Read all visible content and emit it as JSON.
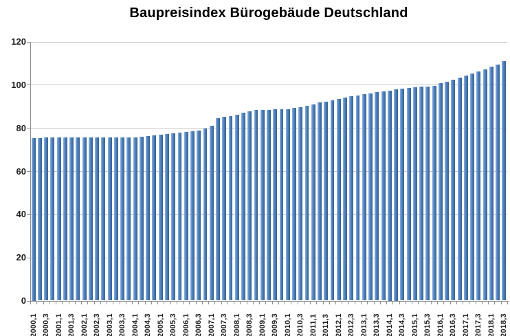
{
  "chart_data": {
    "type": "bar",
    "title": "Baupreisindex Bürogebäude Deutschland",
    "xlabel": "",
    "ylabel": "",
    "ylim": [
      0,
      120
    ],
    "yticks": [
      0,
      20,
      40,
      60,
      80,
      100,
      120
    ],
    "grid": true,
    "legend": false,
    "x_tick_labels": [
      "2000,1",
      "2000,3",
      "2001,1",
      "2001,3",
      "2002,1",
      "2002,3",
      "2003,1",
      "2003,3",
      "2004,1",
      "2004,3",
      "2005,1",
      "2005,3",
      "2006,1",
      "2006,3",
      "2007,1",
      "2007,3",
      "2008,1",
      "2008,3",
      "2009,1",
      "2009,3",
      "2010,1",
      "2010,3",
      "2011,1",
      "2011,3",
      "2012,1",
      "2012,3",
      "2013,1",
      "2013,3",
      "2014,1",
      "2014,3",
      "2015,1",
      "2015,3",
      "2016,1",
      "2016,3",
      "2017,1",
      "2017,3",
      "2018,1",
      "2018,3"
    ],
    "categories": [
      "2000,1",
      "2000,2",
      "2000,3",
      "2000,4",
      "2001,1",
      "2001,2",
      "2001,3",
      "2001,4",
      "2002,1",
      "2002,2",
      "2002,3",
      "2002,4",
      "2003,1",
      "2003,2",
      "2003,3",
      "2003,4",
      "2004,1",
      "2004,2",
      "2004,3",
      "2004,4",
      "2005,1",
      "2005,2",
      "2005,3",
      "2005,4",
      "2006,1",
      "2006,2",
      "2006,3",
      "2006,4",
      "2007,1",
      "2007,2",
      "2007,3",
      "2007,4",
      "2008,1",
      "2008,2",
      "2008,3",
      "2008,4",
      "2009,1",
      "2009,2",
      "2009,3",
      "2009,4",
      "2010,1",
      "2010,2",
      "2010,3",
      "2010,4",
      "2011,1",
      "2011,2",
      "2011,3",
      "2011,4",
      "2012,1",
      "2012,2",
      "2012,3",
      "2012,4",
      "2013,1",
      "2013,2",
      "2013,3",
      "2013,4",
      "2014,1",
      "2014,2",
      "2014,3",
      "2014,4",
      "2015,1",
      "2015,2",
      "2015,3",
      "2015,4",
      "2016,1",
      "2016,2",
      "2016,3",
      "2016,4",
      "2017,1",
      "2017,2",
      "2017,3",
      "2017,4",
      "2018,1",
      "2018,2",
      "2018,3"
    ],
    "values": [
      75.2,
      75.4,
      75.5,
      75.5,
      75.5,
      75.6,
      75.6,
      75.5,
      75.5,
      75.6,
      75.6,
      75.5,
      75.5,
      75.6,
      75.6,
      75.6,
      75.7,
      75.9,
      76.2,
      76.5,
      76.8,
      77.1,
      77.4,
      77.7,
      78.0,
      78.4,
      78.9,
      79.6,
      81.1,
      84.5,
      85.0,
      85.4,
      86.2,
      87.1,
      87.8,
      88.2,
      88.4,
      88.4,
      88.5,
      88.5,
      88.8,
      89.2,
      89.7,
      90.2,
      91.0,
      91.7,
      92.2,
      92.8,
      93.4,
      94.0,
      94.6,
      95.1,
      95.6,
      96.1,
      96.6,
      97.0,
      97.4,
      97.8,
      98.2,
      98.5,
      98.8,
      99.0,
      99.3,
      99.6,
      100.6,
      101.5,
      102.4,
      103.3,
      104.2,
      105.1,
      106.2,
      107.2,
      108.3,
      109.4,
      111.0
    ],
    "colors": {
      "bar_mid": "#4f81bd",
      "bar_light": "#8db3e2",
      "bar_dark": "#35618f",
      "gridline": "#c6c6c6",
      "axis": "#8e8e8e",
      "tick": "#8e8e8e",
      "label_text": "#1f1f1f",
      "title_text": "#000000",
      "background": "#ffffff"
    }
  }
}
